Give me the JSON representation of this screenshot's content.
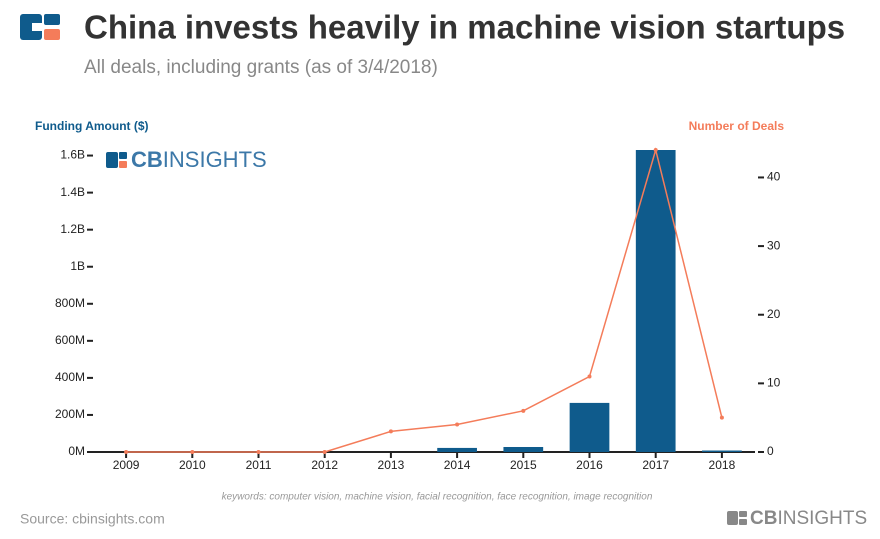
{
  "chart_data": {
    "type": "bar_line",
    "title": "China invests heavily in machine vision startups",
    "subtitle": "All deals, including grants (as of 3/4/2018)",
    "y_label": "Funding Amount ($)",
    "y2_label": "Number of Deals",
    "note": "keywords: computer vision, machine vision, facial recognition, face recognition, image recognition",
    "source": "Source: cbinsights.com",
    "logo": {
      "bold": "CB",
      "rest": "INSIGHTS"
    },
    "categories": [
      "2009",
      "2010",
      "2011",
      "2012",
      "2013",
      "2014",
      "2015",
      "2016",
      "2017",
      "2018"
    ],
    "series": [
      {
        "name": "Funding Amount ($)",
        "type": "bar",
        "color": "#0f5b8c",
        "values": [
          0,
          0,
          0,
          0,
          0,
          22000000,
          27000000,
          265000000,
          1630000000,
          8000000
        ]
      },
      {
        "name": "Number of Deals",
        "type": "line",
        "axis": "y2",
        "color": "#f47c5a",
        "values": [
          0,
          0,
          0,
          0,
          3,
          4,
          6,
          11,
          44,
          5
        ]
      }
    ],
    "ylim": [
      0,
      1630000000
    ],
    "yticks": [
      {
        "value": 0,
        "label": "0M"
      },
      {
        "value": 200000000,
        "label": "200M"
      },
      {
        "value": 400000000,
        "label": "400M"
      },
      {
        "value": 600000000,
        "label": "600M"
      },
      {
        "value": 800000000,
        "label": "800M"
      },
      {
        "value": 1000000000,
        "label": "1B"
      },
      {
        "value": 1200000000,
        "label": "1.2B"
      },
      {
        "value": 1400000000,
        "label": "1.4B"
      },
      {
        "value": 1600000000,
        "label": "1.6B"
      }
    ],
    "y2lim": [
      0,
      44
    ],
    "y2ticks": [
      0,
      10,
      20,
      30,
      40
    ]
  }
}
